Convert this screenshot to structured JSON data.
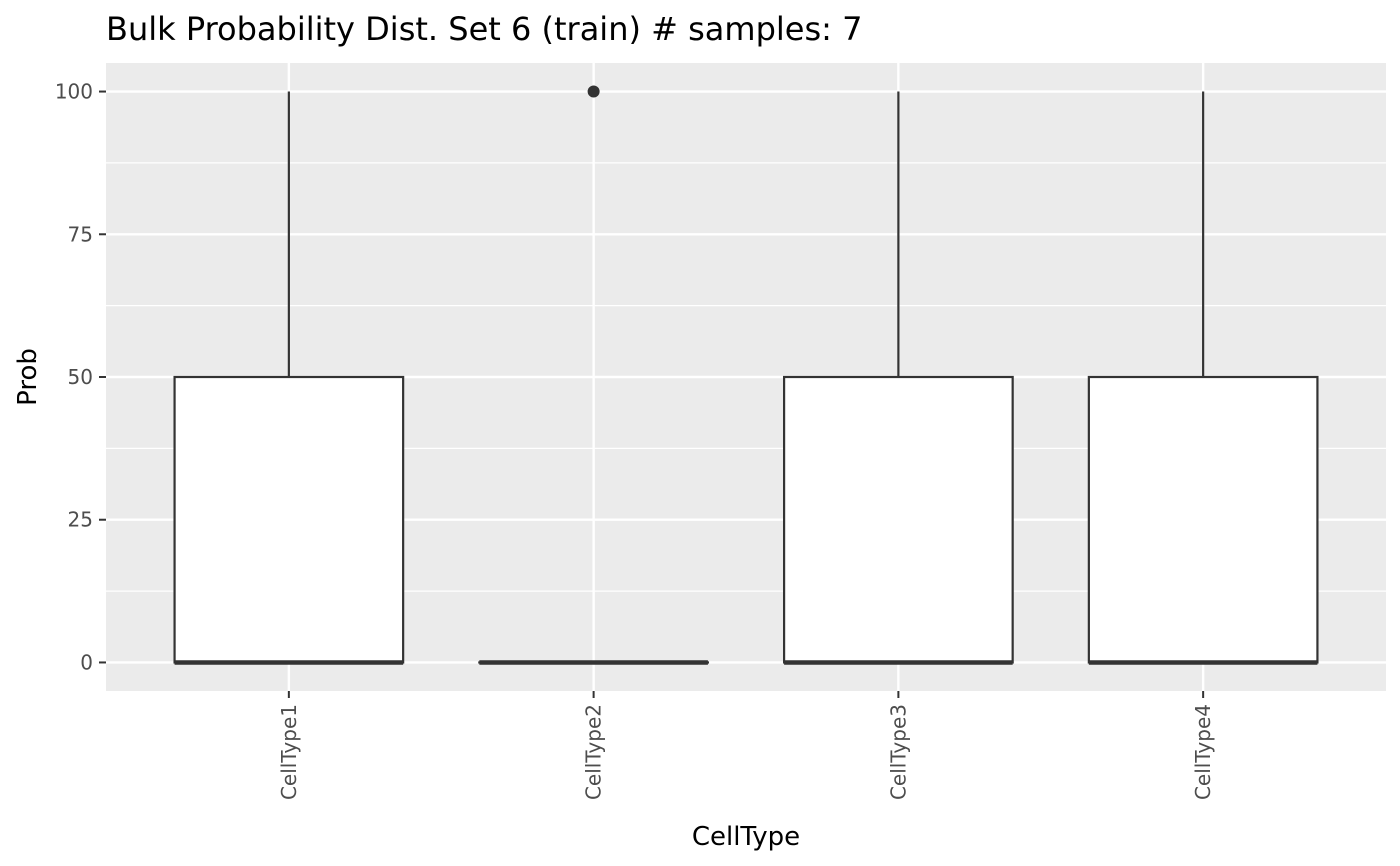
{
  "chart_data": {
    "type": "boxplot",
    "title": "Bulk Probability Dist. Set 6 (train) # samples: 7",
    "xlabel": "CellType",
    "ylabel": "Prob",
    "ylim": [
      -5,
      105
    ],
    "yticks": [
      0,
      25,
      50,
      75,
      100
    ],
    "categories": [
      "CellType1",
      "CellType2",
      "CellType3",
      "CellType4"
    ],
    "boxes": [
      {
        "category": "CellType1",
        "min": 0,
        "q1": 0,
        "median": 0,
        "q3": 50,
        "max": 100,
        "outliers": []
      },
      {
        "category": "CellType2",
        "min": 0,
        "q1": 0,
        "median": 0,
        "q3": 0,
        "max": 0,
        "outliers": [
          100
        ]
      },
      {
        "category": "CellType3",
        "min": 0,
        "q1": 0,
        "median": 0,
        "q3": 50,
        "max": 100,
        "outliers": []
      },
      {
        "category": "CellType4",
        "min": 0,
        "q1": 0,
        "median": 0,
        "q3": 50,
        "max": 100,
        "outliers": []
      }
    ],
    "grid": true,
    "legend": "none",
    "colors": {
      "panel": "#ebebeb",
      "grid": "#ffffff",
      "box_fill": "#ffffff",
      "box_line": "#333333",
      "tick_label": "#4d4d4d"
    }
  }
}
